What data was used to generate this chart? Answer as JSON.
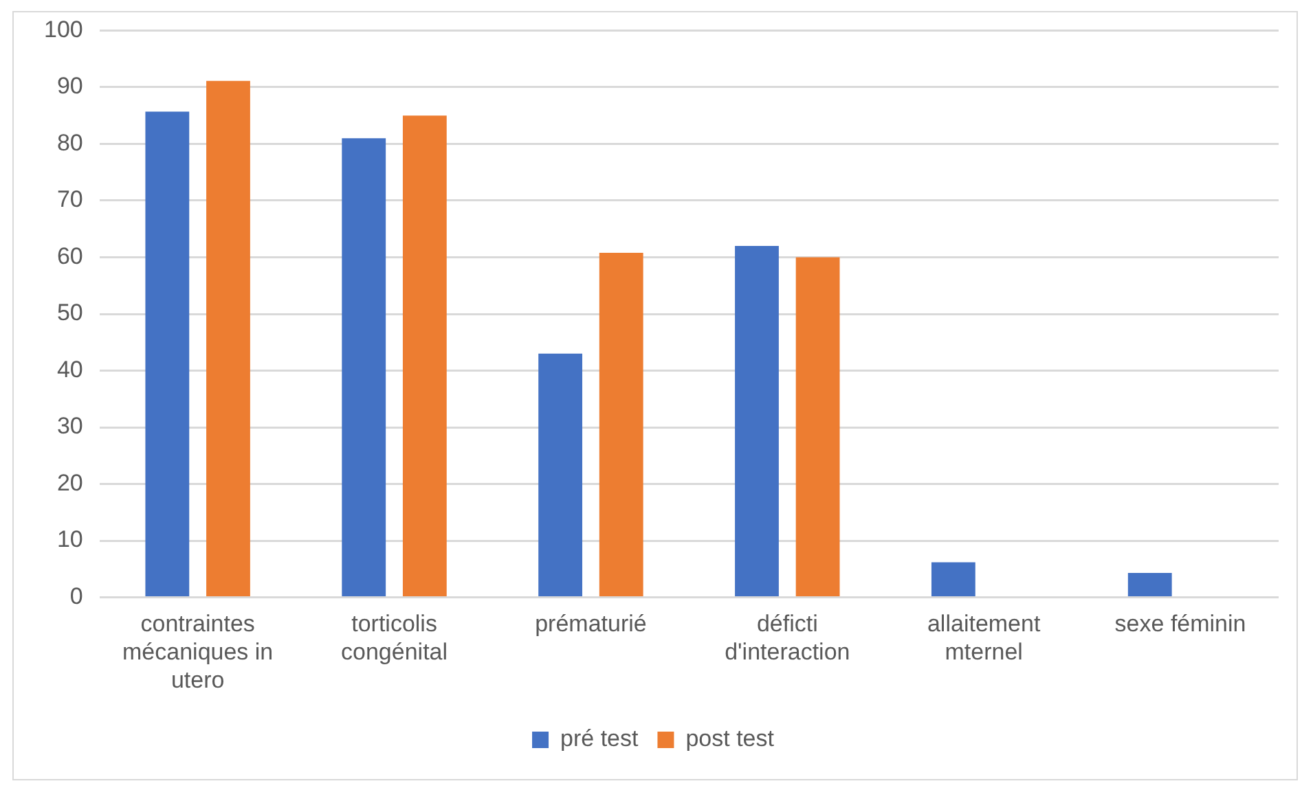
{
  "chart_data": {
    "type": "bar",
    "categories": [
      "contraintes mécaniques in utero",
      "torticolis congénital",
      "prématurié",
      "déficti d'interaction",
      "allaitement mternel",
      "sexe féminin"
    ],
    "series": [
      {
        "name": "pré test",
        "color": "#4472c4",
        "values": [
          85.7,
          81,
          43,
          62,
          6.2,
          4.3
        ]
      },
      {
        "name": "post test",
        "color": "#ed7d31",
        "values": [
          91.1,
          85,
          60.8,
          60,
          0,
          0
        ]
      }
    ],
    "ylim": [
      0,
      100
    ],
    "yticks": [
      0,
      10,
      20,
      30,
      40,
      50,
      60,
      70,
      80,
      90,
      100
    ],
    "grid": "y",
    "legend": "bottom"
  }
}
